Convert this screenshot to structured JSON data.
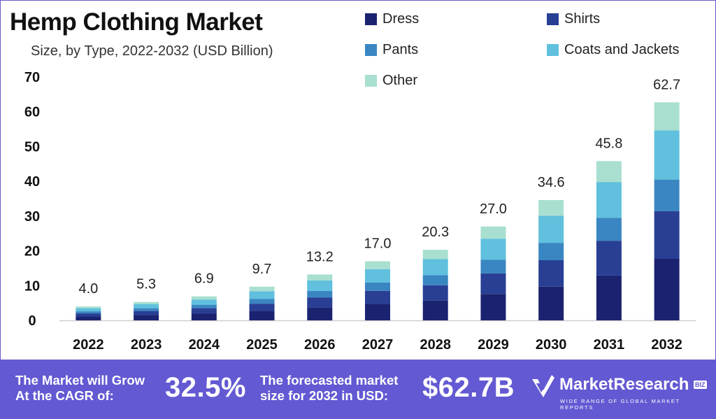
{
  "chart_data": {
    "type": "bar",
    "stacked": true,
    "title": "Hemp Clothing Market",
    "subtitle": "Size, by Type, 2022-2032 (USD Billion)",
    "categories": [
      "2022",
      "2023",
      "2024",
      "2025",
      "2026",
      "2027",
      "2028",
      "2029",
      "2030",
      "2031",
      "2032"
    ],
    "totals": [
      4.0,
      5.3,
      6.9,
      9.7,
      13.2,
      17.0,
      20.3,
      27.0,
      34.6,
      45.8,
      62.7
    ],
    "total_labels": [
      "4.0",
      "5.3",
      "6.9",
      "9.7",
      "13.2",
      "17.0",
      "20.3",
      "27.0",
      "34.6",
      "45.8",
      "62.7"
    ],
    "series": [
      {
        "name": "Dress",
        "color": "#1b2370",
        "values": [
          1.1,
          1.5,
          2.0,
          2.7,
          3.7,
          4.8,
          5.7,
          7.6,
          9.7,
          12.9,
          17.7
        ]
      },
      {
        "name": "Shirts",
        "color": "#283f94",
        "values": [
          0.9,
          1.2,
          1.5,
          2.1,
          2.9,
          3.7,
          4.4,
          5.9,
          7.6,
          10.0,
          13.7
        ]
      },
      {
        "name": "Pants",
        "color": "#3a86c2",
        "values": [
          0.6,
          0.8,
          1.0,
          1.4,
          1.9,
          2.4,
          2.9,
          3.9,
          5.0,
          6.6,
          9.1
        ]
      },
      {
        "name": "Coats and Jackets",
        "color": "#60c0dd",
        "values": [
          0.9,
          1.2,
          1.5,
          2.2,
          3.0,
          3.8,
          4.6,
          6.1,
          7.8,
          10.3,
          14.1
        ]
      },
      {
        "name": "Other",
        "color": "#a9dfd0",
        "values": [
          0.5,
          0.6,
          0.9,
          1.3,
          1.7,
          2.3,
          2.7,
          3.5,
          4.5,
          6.0,
          8.1
        ]
      }
    ],
    "yticks": [
      "0",
      "10",
      "20",
      "30",
      "40",
      "50",
      "60",
      "70"
    ],
    "ylim": [
      0,
      70
    ],
    "grid": false,
    "legend_position": "top-right"
  },
  "banner": {
    "cagr_text_line1": "The Market will Grow",
    "cagr_text_line2": "At the CAGR of:",
    "cagr_value": "32.5%",
    "forecast_text_line1": "The forecasted market",
    "forecast_text_line2": "size for 2032 in USD:",
    "forecast_value": "$62.7B",
    "logo_text": "MarketResearch",
    "logo_badge": "BIZ",
    "logo_tagline": "WIDE RANGE OF GLOBAL MARKET REPORTS"
  },
  "colors": {
    "banner_bg": "#6359d2",
    "axis": "#cfcfcf"
  }
}
